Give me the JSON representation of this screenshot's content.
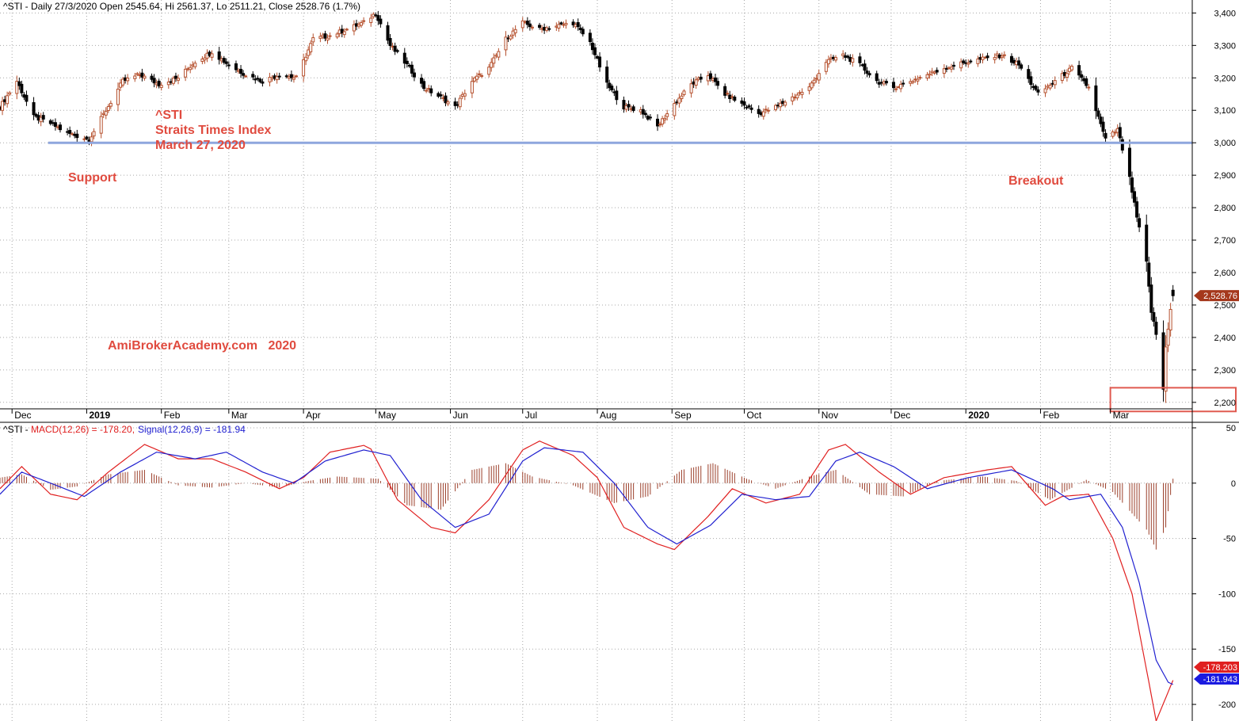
{
  "chart_data": [
    {
      "type": "candlestick",
      "symbol": "^STI",
      "header": "^STI - Daily 27/3/2020 Open 2545.64, Hi 2561.37, Lo 2511.21, Close 2528.76 (1.7%)",
      "ohlc_latest": {
        "date": "27/3/2020",
        "open": 2545.64,
        "high": 2561.37,
        "low": 2511.21,
        "close": 2528.76,
        "change": "1.7%"
      },
      "last_value_label": "2,528.76",
      "ylim": [
        2180,
        3440
      ],
      "yticks": [
        2200,
        2300,
        2400,
        2500,
        2600,
        2700,
        2800,
        2900,
        3000,
        3100,
        3200,
        3300,
        3400
      ],
      "ytick_labels": [
        "2,200",
        "2,300",
        "2,400",
        "2,500",
        "2,600",
        "2,700",
        "2,800",
        "2,900",
        "3,000",
        "3,100",
        "3,200",
        "3,300",
        "3,400"
      ],
      "months": [
        {
          "label": "Dec",
          "year": false,
          "date": "2018-12-01"
        },
        {
          "label": "2019",
          "year": true,
          "date": "2019-01-01"
        },
        {
          "label": "Feb",
          "year": false,
          "date": "2019-02-01"
        },
        {
          "label": "Mar",
          "year": false,
          "date": "2019-03-01"
        },
        {
          "label": "Apr",
          "year": false,
          "date": "2019-04-01"
        },
        {
          "label": "May",
          "year": false,
          "date": "2019-05-01"
        },
        {
          "label": "Jun",
          "year": false,
          "date": "2019-06-01"
        },
        {
          "label": "Jul",
          "year": false,
          "date": "2019-07-01"
        },
        {
          "label": "Aug",
          "year": false,
          "date": "2019-08-01"
        },
        {
          "label": "Sep",
          "year": false,
          "date": "2019-09-01"
        },
        {
          "label": "Oct",
          "year": false,
          "date": "2019-10-01"
        },
        {
          "label": "Nov",
          "year": false,
          "date": "2019-11-01"
        },
        {
          "label": "Dec",
          "year": false,
          "date": "2019-12-01"
        },
        {
          "label": "2020",
          "year": true,
          "date": "2020-01-01"
        },
        {
          "label": "Feb",
          "year": false,
          "date": "2020-02-01"
        },
        {
          "label": "Mar",
          "year": false,
          "date": "2020-03-01"
        }
      ],
      "close_path": [
        [
          "2018-11-26",
          3110
        ],
        [
          "2018-12-03",
          3190
        ],
        [
          "2018-12-10",
          3080
        ],
        [
          "2018-12-17",
          3060
        ],
        [
          "2018-12-24",
          3030
        ],
        [
          "2019-01-02",
          3010
        ],
        [
          "2019-01-09",
          3100
        ],
        [
          "2019-01-16",
          3190
        ],
        [
          "2019-01-23",
          3210
        ],
        [
          "2019-01-31",
          3180
        ],
        [
          "2019-02-08",
          3200
        ],
        [
          "2019-02-15",
          3250
        ],
        [
          "2019-02-22",
          3280
        ],
        [
          "2019-03-01",
          3240
        ],
        [
          "2019-03-08",
          3210
        ],
        [
          "2019-03-15",
          3190
        ],
        [
          "2019-03-22",
          3210
        ],
        [
          "2019-03-29",
          3200
        ],
        [
          "2019-04-05",
          3320
        ],
        [
          "2019-04-12",
          3330
        ],
        [
          "2019-04-19",
          3350
        ],
        [
          "2019-04-26",
          3370
        ],
        [
          "2019-05-01",
          3400
        ],
        [
          "2019-05-07",
          3300
        ],
        [
          "2019-05-14",
          3240
        ],
        [
          "2019-05-21",
          3170
        ],
        [
          "2019-05-28",
          3140
        ],
        [
          "2019-06-03",
          3110
        ],
        [
          "2019-06-10",
          3190
        ],
        [
          "2019-06-17",
          3230
        ],
        [
          "2019-06-24",
          3320
        ],
        [
          "2019-07-01",
          3370
        ],
        [
          "2019-07-08",
          3350
        ],
        [
          "2019-07-15",
          3360
        ],
        [
          "2019-07-22",
          3370
        ],
        [
          "2019-07-29",
          3310
        ],
        [
          "2019-08-05",
          3180
        ],
        [
          "2019-08-12",
          3110
        ],
        [
          "2019-08-19",
          3100
        ],
        [
          "2019-08-26",
          3050
        ],
        [
          "2019-09-02",
          3120
        ],
        [
          "2019-09-09",
          3180
        ],
        [
          "2019-09-16",
          3210
        ],
        [
          "2019-09-23",
          3150
        ],
        [
          "2019-09-30",
          3120
        ],
        [
          "2019-10-07",
          3090
        ],
        [
          "2019-10-14",
          3110
        ],
        [
          "2019-10-21",
          3140
        ],
        [
          "2019-10-28",
          3170
        ],
        [
          "2019-11-04",
          3250
        ],
        [
          "2019-11-11",
          3270
        ],
        [
          "2019-11-18",
          3240
        ],
        [
          "2019-11-25",
          3190
        ],
        [
          "2019-12-02",
          3170
        ],
        [
          "2019-12-09",
          3190
        ],
        [
          "2019-12-16",
          3210
        ],
        [
          "2019-12-23",
          3230
        ],
        [
          "2020-01-02",
          3250
        ],
        [
          "2020-01-09",
          3260
        ],
        [
          "2020-01-16",
          3270
        ],
        [
          "2020-01-23",
          3240
        ],
        [
          "2020-01-31",
          3150
        ],
        [
          "2020-02-07",
          3190
        ],
        [
          "2020-02-14",
          3230
        ],
        [
          "2020-02-21",
          3170
        ],
        [
          "2020-02-28",
          3010
        ],
        [
          "2020-03-04",
          3040
        ],
        [
          "2020-03-09",
          2890
        ],
        [
          "2020-03-12",
          2770
        ],
        [
          "2020-03-16",
          2630
        ],
        [
          "2020-03-18",
          2480
        ],
        [
          "2020-03-20",
          2410
        ],
        [
          "2020-03-23",
          2240
        ],
        [
          "2020-03-24",
          2370
        ],
        [
          "2020-03-26",
          2490
        ],
        [
          "2020-03-27",
          2529
        ]
      ],
      "support_level": 3000,
      "annotations": {
        "title1": "^STI",
        "title2": "Straits Times Index",
        "title3": "March 27, 2020",
        "support": "Support",
        "breakout": "Breakout",
        "watermark": "AmiBrokerAcademy.com   2020"
      },
      "colors": {
        "up": "#b5502d",
        "down": "#000000",
        "support_line": "#8ea6dd",
        "annotation": "#e04b3f",
        "highlight_box": "#e05a50"
      }
    },
    {
      "type": "line",
      "header_prefix": "^STI - ",
      "macd_label": "MACD(12,26) = -178.20,",
      "signal_label": "Signal(12,26,9) = -181.94",
      "ylim": [
        -215,
        55
      ],
      "yticks": [
        50,
        0,
        -50,
        -100,
        -150,
        -200
      ],
      "ytick_labels": [
        "50",
        "0",
        "-50",
        "-100",
        "-150",
        "-200"
      ],
      "series": [
        {
          "name": "MACD(12,26)",
          "color": "#e02020",
          "last_label": "-178.203",
          "path": [
            [
              "2018-11-26",
              -5
            ],
            [
              "2018-12-05",
              15
            ],
            [
              "2018-12-17",
              -10
            ],
            [
              "2018-12-28",
              -15
            ],
            [
              "2019-01-10",
              10
            ],
            [
              "2019-01-25",
              35
            ],
            [
              "2019-02-08",
              22
            ],
            [
              "2019-02-22",
              22
            ],
            [
              "2019-03-08",
              10
            ],
            [
              "2019-03-22",
              -5
            ],
            [
              "2019-04-01",
              5
            ],
            [
              "2019-04-12",
              28
            ],
            [
              "2019-04-28",
              35
            ],
            [
              "2019-05-10",
              -15
            ],
            [
              "2019-05-24",
              -40
            ],
            [
              "2019-06-03",
              -45
            ],
            [
              "2019-06-17",
              -15
            ],
            [
              "2019-07-01",
              30
            ],
            [
              "2019-07-08",
              38
            ],
            [
              "2019-07-22",
              25
            ],
            [
              "2019-08-01",
              5
            ],
            [
              "2019-08-12",
              -40
            ],
            [
              "2019-08-26",
              -55
            ],
            [
              "2019-09-02",
              -60
            ],
            [
              "2019-09-16",
              -30
            ],
            [
              "2019-09-26",
              -5
            ],
            [
              "2019-10-10",
              -18
            ],
            [
              "2019-10-24",
              -10
            ],
            [
              "2019-11-05",
              30
            ],
            [
              "2019-11-12",
              35
            ],
            [
              "2019-11-26",
              10
            ],
            [
              "2019-12-09",
              -10
            ],
            [
              "2019-12-23",
              5
            ],
            [
              "2020-01-10",
              12
            ],
            [
              "2020-01-20",
              15
            ],
            [
              "2020-02-03",
              -20
            ],
            [
              "2020-02-10",
              -12
            ],
            [
              "2020-02-21",
              -10
            ],
            [
              "2020-03-02",
              -50
            ],
            [
              "2020-03-10",
              -100
            ],
            [
              "2020-03-17",
              -180
            ],
            [
              "2020-03-20",
              -215
            ],
            [
              "2020-03-27",
              -178.2
            ]
          ]
        },
        {
          "name": "Signal(12,26,9)",
          "color": "#2020d0",
          "last_label": "-181.943",
          "path": [
            [
              "2018-11-26",
              -10
            ],
            [
              "2018-12-05",
              10
            ],
            [
              "2018-12-17",
              0
            ],
            [
              "2018-12-31",
              -12
            ],
            [
              "2019-01-15",
              10
            ],
            [
              "2019-01-30",
              28
            ],
            [
              "2019-02-15",
              22
            ],
            [
              "2019-02-28",
              28
            ],
            [
              "2019-03-15",
              10
            ],
            [
              "2019-03-28",
              0
            ],
            [
              "2019-04-10",
              20
            ],
            [
              "2019-04-26",
              30
            ],
            [
              "2019-05-07",
              25
            ],
            [
              "2019-05-20",
              -15
            ],
            [
              "2019-06-03",
              -40
            ],
            [
              "2019-06-17",
              -28
            ],
            [
              "2019-07-01",
              20
            ],
            [
              "2019-07-10",
              32
            ],
            [
              "2019-07-26",
              28
            ],
            [
              "2019-08-08",
              0
            ],
            [
              "2019-08-22",
              -40
            ],
            [
              "2019-09-03",
              -55
            ],
            [
              "2019-09-17",
              -38
            ],
            [
              "2019-09-30",
              -10
            ],
            [
              "2019-10-14",
              -15
            ],
            [
              "2019-10-28",
              -12
            ],
            [
              "2019-11-08",
              20
            ],
            [
              "2019-11-18",
              28
            ],
            [
              "2019-12-02",
              15
            ],
            [
              "2019-12-16",
              -5
            ],
            [
              "2020-01-02",
              5
            ],
            [
              "2020-01-20",
              12
            ],
            [
              "2020-02-06",
              -5
            ],
            [
              "2020-02-13",
              -15
            ],
            [
              "2020-02-26",
              -10
            ],
            [
              "2020-03-06",
              -40
            ],
            [
              "2020-03-13",
              -90
            ],
            [
              "2020-03-20",
              -160
            ],
            [
              "2020-03-25",
              -180
            ],
            [
              "2020-03-27",
              -181.94
            ]
          ]
        }
      ],
      "histogram_path": [
        [
          "2018-11-26",
          5
        ],
        [
          "2018-12-05",
          8
        ],
        [
          "2018-12-17",
          -6
        ],
        [
          "2018-12-28",
          -3
        ],
        [
          "2019-01-10",
          8
        ],
        [
          "2019-01-25",
          12
        ],
        [
          "2019-02-08",
          -2
        ],
        [
          "2019-02-22",
          -4
        ],
        [
          "2019-03-08",
          0
        ],
        [
          "2019-03-22",
          -4
        ],
        [
          "2019-04-03",
          2
        ],
        [
          "2019-04-15",
          6
        ],
        [
          "2019-05-02",
          4
        ],
        [
          "2019-05-14",
          -20
        ],
        [
          "2019-05-28",
          -24
        ],
        [
          "2019-06-10",
          12
        ],
        [
          "2019-06-24",
          18
        ],
        [
          "2019-07-05",
          6
        ],
        [
          "2019-07-22",
          -2
        ],
        [
          "2019-08-08",
          -18
        ],
        [
          "2019-08-22",
          -12
        ],
        [
          "2019-09-05",
          12
        ],
        [
          "2019-09-18",
          18
        ],
        [
          "2019-10-02",
          4
        ],
        [
          "2019-10-14",
          -5
        ],
        [
          "2019-10-28",
          6
        ],
        [
          "2019-11-08",
          12
        ],
        [
          "2019-11-22",
          -10
        ],
        [
          "2019-12-06",
          -12
        ],
        [
          "2019-12-20",
          2
        ],
        [
          "2020-01-08",
          6
        ],
        [
          "2020-01-22",
          2
        ],
        [
          "2020-02-05",
          -15
        ],
        [
          "2020-02-20",
          3
        ],
        [
          "2020-03-02",
          -8
        ],
        [
          "2020-03-09",
          -25
        ],
        [
          "2020-03-16",
          -42
        ],
        [
          "2020-03-20",
          -60
        ],
        [
          "2020-03-24",
          -40
        ],
        [
          "2020-03-27",
          4
        ]
      ],
      "histogram_color": "#9b3f2a"
    }
  ]
}
